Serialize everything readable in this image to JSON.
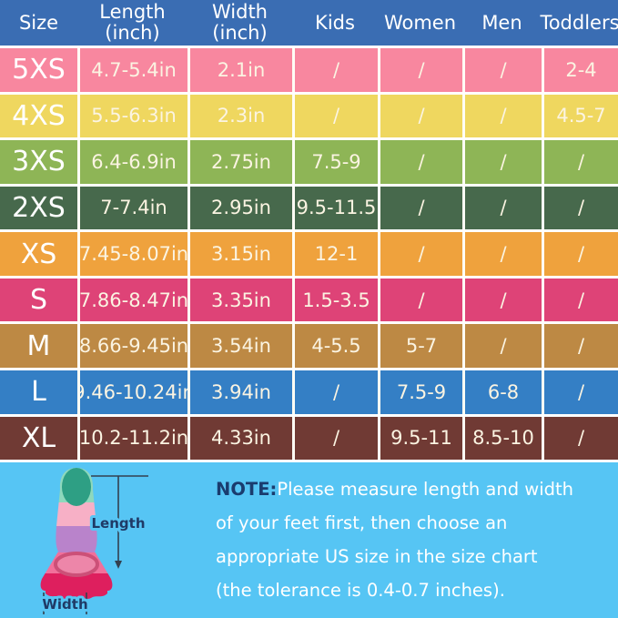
{
  "table": {
    "header": {
      "bg": "#3A6DB3",
      "text_color": "#ffffff",
      "columns": [
        {
          "label": "Size",
          "sub": ""
        },
        {
          "label": "Length",
          "sub": "(inch)"
        },
        {
          "label": "Width",
          "sub": "(inch)"
        },
        {
          "label": "Kids",
          "sub": ""
        },
        {
          "label": "Women",
          "sub": ""
        },
        {
          "label": "Men",
          "sub": ""
        },
        {
          "label": "Toddlers",
          "sub": ""
        }
      ]
    },
    "rows": [
      {
        "size": "5XS",
        "length": "4.7-5.4in",
        "width": "2.1in",
        "kids": "/",
        "women": "/",
        "men": "/",
        "toddlers": "2-4",
        "color": "#F8879F"
      },
      {
        "size": "4XS",
        "length": "5.5-6.3in",
        "width": "2.3in",
        "kids": "/",
        "women": "/",
        "men": "/",
        "toddlers": "4.5-7",
        "color": "#EFD75F"
      },
      {
        "size": "3XS",
        "length": "6.4-6.9in",
        "width": "2.75in",
        "kids": "7.5-9",
        "women": "/",
        "men": "/",
        "toddlers": "/",
        "color": "#8EB556"
      },
      {
        "size": "2XS",
        "length": "7-7.4in",
        "width": "2.95in",
        "kids": "9.5-11.5",
        "women": "/",
        "men": "/",
        "toddlers": "/",
        "color": "#47694C"
      },
      {
        "size": "XS",
        "length": "7.45-8.07in",
        "width": "3.15in",
        "kids": "12-1",
        "women": "/",
        "men": "/",
        "toddlers": "/",
        "color": "#EFA23D"
      },
      {
        "size": "S",
        "length": "7.86-8.47in",
        "width": "3.35in",
        "kids": "1.5-3.5",
        "women": "/",
        "men": "/",
        "toddlers": "/",
        "color": "#DE4377"
      },
      {
        "size": "M",
        "length": "8.66-9.45in",
        "width": "3.54in",
        "kids": "4-5.5",
        "women": "5-7",
        "men": "/",
        "toddlers": "/",
        "color": "#BD8944"
      },
      {
        "size": "L",
        "length": "9.46-10.24in",
        "width": "3.94in",
        "kids": "/",
        "women": "7.5-9",
        "men": "6-8",
        "toddlers": "/",
        "color": "#347FC5"
      },
      {
        "size": "XL",
        "length": "10.2-11.2in",
        "width": "4.33in",
        "kids": "/",
        "women": "9.5-11",
        "men": "8.5-10",
        "toddlers": "/",
        "color": "#703A34"
      }
    ]
  },
  "note": {
    "prefix": "NOTE:",
    "prefix_color": "#1A3C6E",
    "lines": [
      "Please measure length and width",
      "of your feet first, then choose an",
      "appropriate US size in the size chart",
      "(the tolerance is 0.4-0.7 inches)."
    ]
  },
  "bottom": {
    "bg": "#56C5F4"
  },
  "diagram": {
    "length_label": "Length",
    "width_label": "Width",
    "label_color": "#1F3A66",
    "arrow_color": "#33404F",
    "fin_colors": {
      "mint": "#8ED8BC",
      "teal": "#2E9F84",
      "light_pink": "#F7B0C6",
      "purple": "#B983CB",
      "pink": "#F1709B",
      "crimson": "#DE1F5E",
      "opening": "#ED86A9",
      "opening_ring": "#CC5078"
    }
  }
}
